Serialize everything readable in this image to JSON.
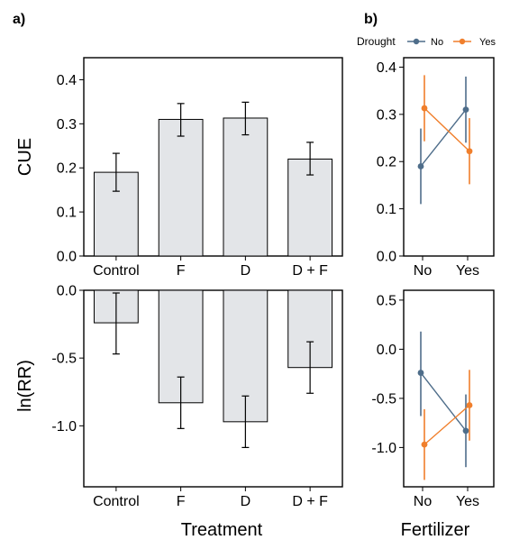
{
  "panel_labels": {
    "a": "a)",
    "b": "b)"
  },
  "legend": {
    "title": "Drought",
    "entries": [
      {
        "label": "No",
        "color": "#4e6d8a"
      },
      {
        "label": "Yes",
        "color": "#f07f2c"
      }
    ]
  },
  "axis_titles": {
    "cue": "CUE",
    "lnrr": "ln(RR)",
    "treatment": "Treatment",
    "fertilizer": "Fertilizer"
  },
  "chart_data": [
    {
      "id": "a_top",
      "type": "bar",
      "categories": [
        "Control",
        "F",
        "D",
        "D + F"
      ],
      "values": [
        0.19,
        0.31,
        0.313,
        0.22
      ],
      "err_low": [
        0.147,
        0.272,
        0.275,
        0.184
      ],
      "err_high": [
        0.233,
        0.346,
        0.349,
        0.258
      ],
      "ylabel": "CUE",
      "ylim": [
        0,
        0.45
      ],
      "yticks": [
        "0.0",
        "0.1",
        "0.2",
        "0.3",
        "0.4"
      ]
    },
    {
      "id": "a_bottom",
      "type": "bar",
      "categories": [
        "Control",
        "F",
        "D",
        "D + F"
      ],
      "values": [
        -0.24,
        -0.83,
        -0.97,
        -0.57
      ],
      "err_low": [
        -0.47,
        -1.02,
        -1.16,
        -0.76
      ],
      "err_high": [
        -0.02,
        -0.64,
        -0.78,
        -0.38
      ],
      "ylabel": "ln(RR)",
      "xlabel": "Treatment",
      "ylim": [
        -1.45,
        0
      ],
      "yticks": [
        "0.0",
        "-0.5",
        "-1.0"
      ]
    },
    {
      "id": "b_top",
      "type": "line",
      "x": [
        "No",
        "Yes"
      ],
      "ylim": [
        0,
        0.42
      ],
      "yticks": [
        "0.0",
        "0.1",
        "0.2",
        "0.3",
        "0.4"
      ],
      "series": [
        {
          "name": "No",
          "color": "#4e6d8a",
          "values": [
            0.19,
            0.31
          ],
          "err_low": [
            0.11,
            0.24
          ],
          "err_high": [
            0.27,
            0.38
          ]
        },
        {
          "name": "Yes",
          "color": "#f07f2c",
          "values": [
            0.313,
            0.222
          ],
          "err_low": [
            0.243,
            0.152
          ],
          "err_high": [
            0.383,
            0.292
          ]
        }
      ]
    },
    {
      "id": "b_bottom",
      "type": "line",
      "x": [
        "No",
        "Yes"
      ],
      "xlabel": "Fertilizer",
      "ylim": [
        -1.4,
        0.6
      ],
      "yticks": [
        "0.5",
        "0.0",
        "-0.5",
        "-1.0"
      ],
      "series": [
        {
          "name": "No",
          "color": "#4e6d8a",
          "values": [
            -0.24,
            -0.83
          ],
          "err_low": [
            -0.68,
            -1.2
          ],
          "err_high": [
            0.18,
            -0.46
          ]
        },
        {
          "name": "Yes",
          "color": "#f07f2c",
          "values": [
            -0.97,
            -0.57
          ],
          "err_low": [
            -1.33,
            -0.93
          ],
          "err_high": [
            -0.61,
            -0.21
          ]
        }
      ]
    }
  ]
}
